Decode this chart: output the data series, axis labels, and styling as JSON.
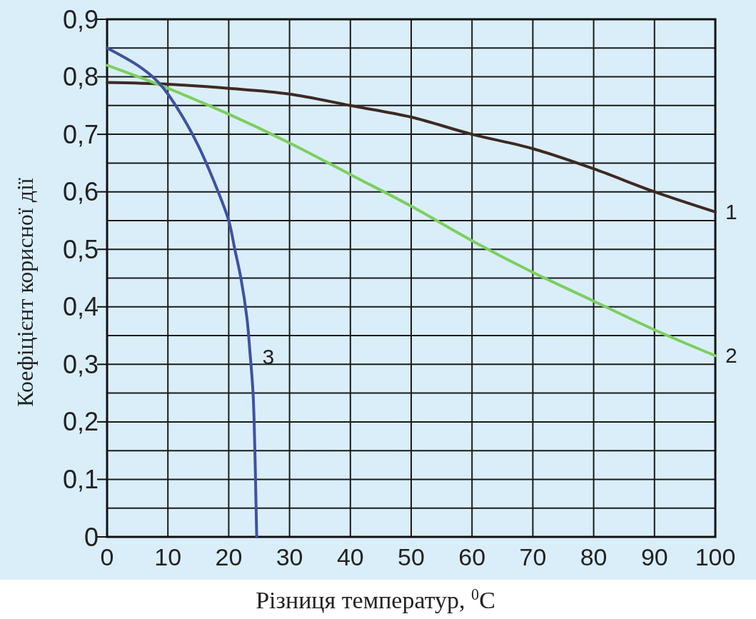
{
  "chart_data": {
    "type": "line",
    "xlabel": "Різниця температур, $^{0}$C",
    "ylabel": "Коефіцієнт корисної дії",
    "xlim": [
      0,
      100
    ],
    "xticks": [
      0,
      10,
      20,
      30,
      40,
      50,
      60,
      70,
      80,
      90,
      100
    ],
    "ylim": [
      0,
      0.9
    ],
    "yticks": [
      0,
      {
        "value": 0.05,
        "label": null
      },
      {
        "value": 0.1,
        "label": "0,1"
      },
      {
        "value": 0.15,
        "label": null
      },
      {
        "value": 0.2,
        "label": "0,2"
      },
      {
        "value": 0.25,
        "label": null
      },
      {
        "value": 0.3,
        "label": "0,3"
      },
      {
        "value": 0.35,
        "label": null
      },
      {
        "value": 0.4,
        "label": "0,4"
      },
      {
        "value": 0.45,
        "label": null
      },
      {
        "value": 0.5,
        "label": "0,5"
      },
      {
        "value": 0.55,
        "label": null
      },
      {
        "value": 0.6,
        "label": "0,6"
      },
      {
        "value": 0.65,
        "label": null
      },
      {
        "value": 0.7,
        "label": "0,7"
      },
      {
        "value": 0.75,
        "label": null
      },
      {
        "value": 0.8,
        "label": "0,8"
      },
      {
        "value": 0.85,
        "label": null
      },
      {
        "value": 0.9,
        "label": "0,9"
      }
    ],
    "grid": true,
    "marker": "none",
    "line_style": "solid",
    "series": [
      {
        "name": "1",
        "color": "#3d2a22",
        "x": [
          0,
          10,
          20,
          30,
          40,
          50,
          60,
          70,
          80,
          90,
          100
        ],
        "values": [
          0.79,
          0.787,
          0.78,
          0.77,
          0.75,
          0.73,
          0.7,
          0.675,
          0.64,
          0.6,
          0.565
        ]
      },
      {
        "name": "2",
        "color": "#7ccf5f",
        "x": [
          0,
          10,
          20,
          30,
          40,
          50,
          60,
          70,
          80,
          90,
          100
        ],
        "values": [
          0.82,
          0.78,
          0.735,
          0.685,
          0.63,
          0.575,
          0.515,
          0.46,
          0.41,
          0.36,
          0.315
        ]
      },
      {
        "name": "3",
        "color": "#3f51a3",
        "x": [
          0,
          5,
          8,
          10,
          13,
          15,
          17.5,
          20,
          21,
          22,
          23,
          23.5,
          24,
          24.3,
          24.5,
          24.6
        ],
        "values": [
          0.85,
          0.82,
          0.795,
          0.77,
          0.72,
          0.68,
          0.62,
          0.55,
          0.5,
          0.45,
          0.38,
          0.32,
          0.25,
          0.15,
          0.05,
          0
        ]
      }
    ]
  }
}
